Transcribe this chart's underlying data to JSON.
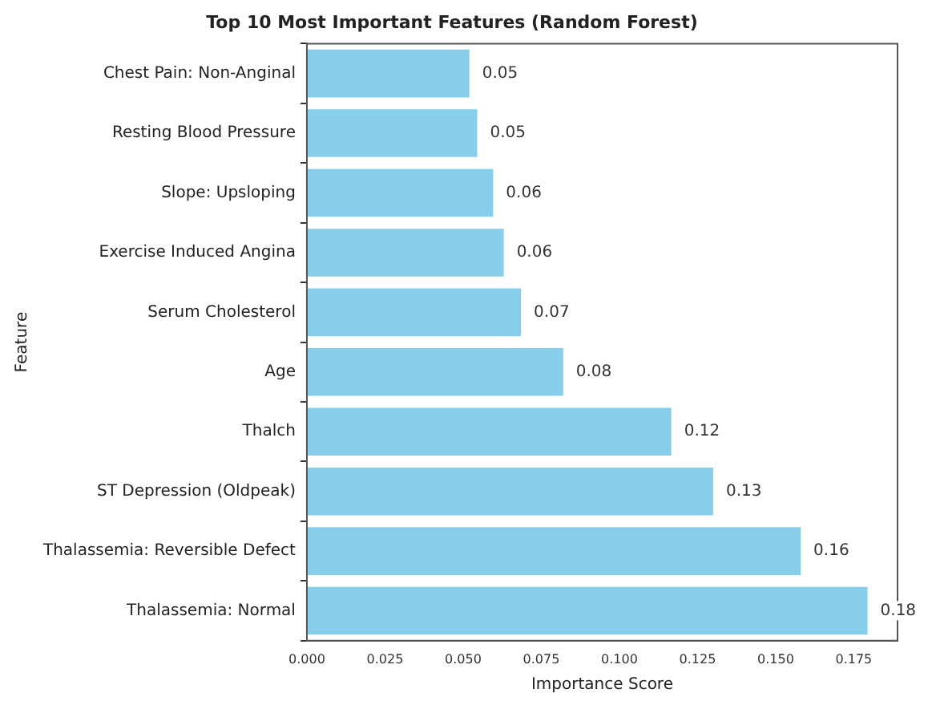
{
  "chart_data": {
    "type": "bar",
    "orientation": "horizontal",
    "title": "Top 10 Most Important Features (Random Forest)",
    "xlabel": "Importance Score",
    "ylabel": "Feature",
    "categories": [
      "Chest Pain: Non-Anginal",
      "Resting Blood Pressure",
      "Slope: Upsloping",
      "Exercise Induced Angina",
      "Serum Cholesterol",
      "Age",
      "Thalch",
      "ST Depression (Oldpeak)",
      "Thalassemia: Reversible Defect",
      "Thalassemia: Normal"
    ],
    "values": [
      0.052,
      0.0545,
      0.0596,
      0.063,
      0.0685,
      0.082,
      0.1166,
      0.13,
      0.158,
      0.1794
    ],
    "value_labels": [
      "0.05",
      "0.05",
      "0.06",
      "0.06",
      "0.07",
      "0.08",
      "0.12",
      "0.13",
      "0.16",
      "0.18"
    ],
    "color": "#87ceeb",
    "xlim": [
      0,
      0.189
    ],
    "xticks": [
      {
        "value": 0,
        "label": "0.000"
      },
      {
        "value": 0.025,
        "label": "0.025"
      },
      {
        "value": 0.05,
        "label": "0.050"
      },
      {
        "value": 0.075,
        "label": "0.075"
      },
      {
        "value": 0.1,
        "label": "0.100"
      },
      {
        "value": 0.125,
        "label": "0.125"
      },
      {
        "value": 0.15,
        "label": "0.150"
      },
      {
        "value": 0.175,
        "label": "0.175"
      }
    ],
    "grid": false,
    "legend": false
  }
}
